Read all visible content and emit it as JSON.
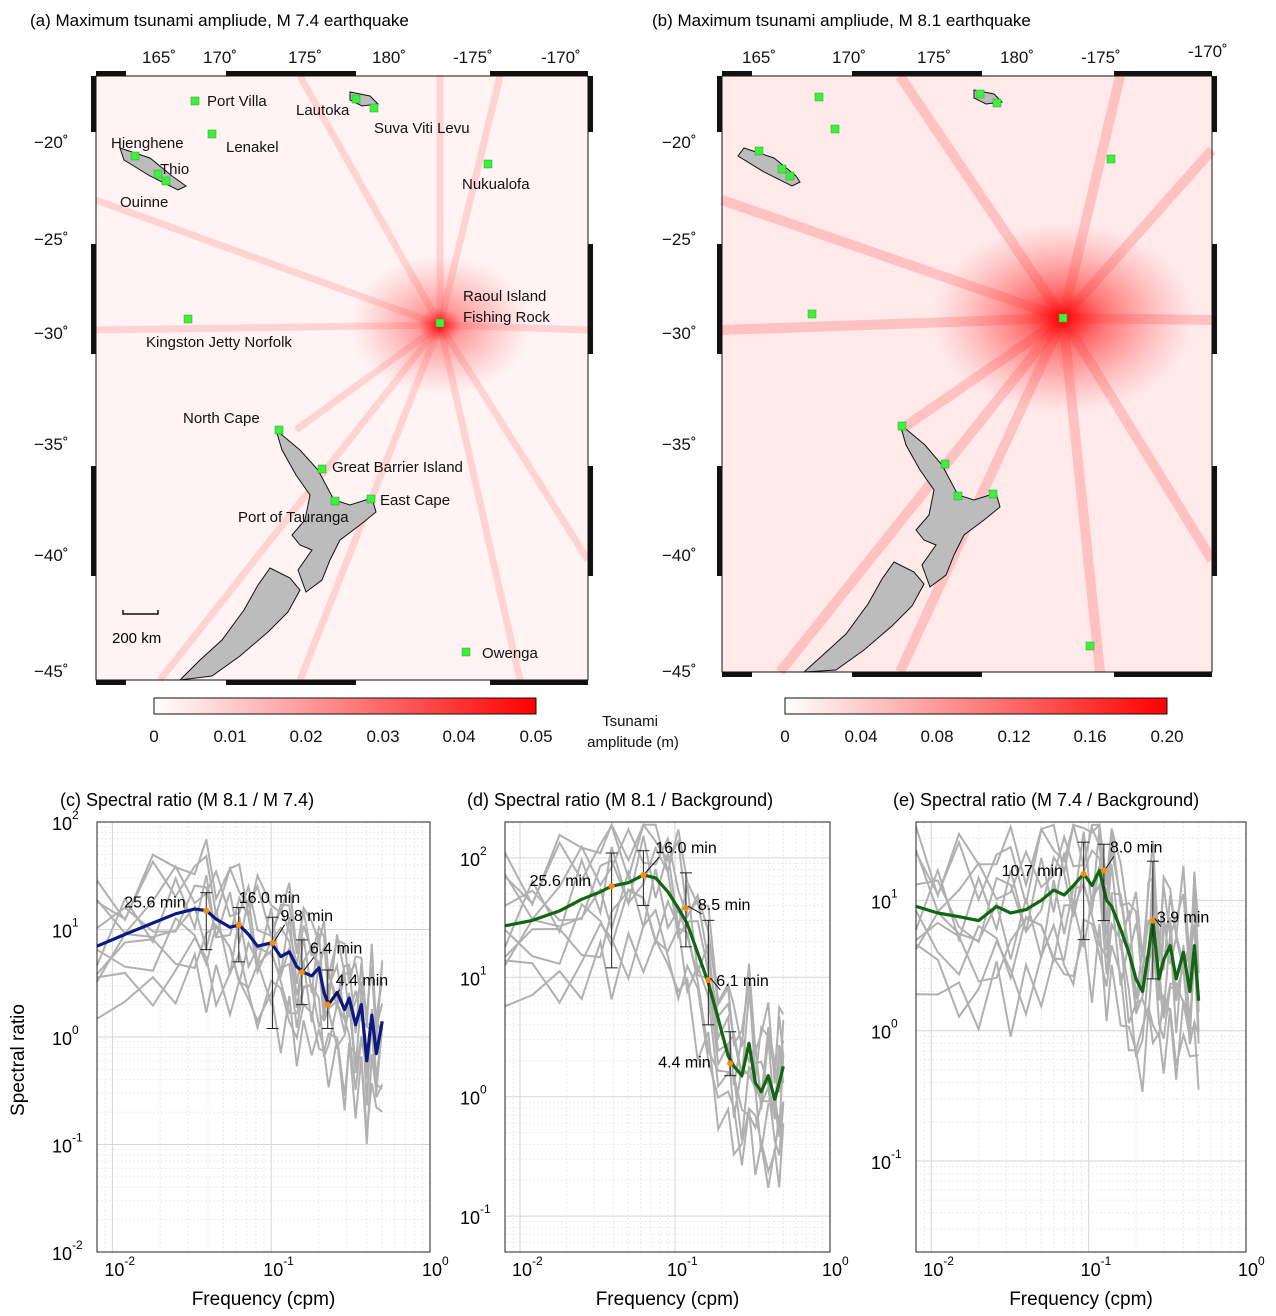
{
  "colors": {
    "land": "#bcbcbc",
    "coast": "#111111",
    "marker": "#3cf03c",
    "tsunami_red": "#ff0000",
    "series_c": "#0a1a80",
    "series_de": "#116611",
    "gray_lines": "#b0b0b0",
    "orange_points": "#ff8c00"
  },
  "panel_a": {
    "title": "(a) Maximum tsunami ampliude, M 7.4 earthquake",
    "lon_ticks": [
      "165˚",
      "170˚",
      "175˚",
      "180˚",
      "-175˚",
      "-170˚"
    ],
    "lat_ticks": [
      "−20˚",
      "−25˚",
      "−30˚",
      "−35˚",
      "−40˚",
      "−45˚"
    ],
    "scale_bar": "200 km",
    "stations": [
      "Port Villa",
      "Lenakel",
      "Lautoka",
      "Suva Viti Levu",
      "Hienghene",
      "Thio",
      "Ouinne",
      "Nukualofa",
      "Raoul Island",
      "Fishing Rock",
      "Kingston Jetty Norfolk",
      "North Cape",
      "Great Barrier Island",
      "East Cape",
      "Port of Tauranga",
      "Owenga"
    ],
    "colorbar": {
      "ticks": [
        "0",
        "0.01",
        "0.02",
        "0.03",
        "0.04",
        "0.05"
      ],
      "range": [
        0,
        0.05
      ]
    },
    "colorbar_label": [
      "Tsunami",
      "amplitude (m)"
    ]
  },
  "panel_b": {
    "title": "(b) Maximum tsunami ampliude, M 8.1 earthquake",
    "lon_ticks": [
      "165˚",
      "170˚",
      "175˚",
      "180˚",
      "-175˚",
      "-170˚"
    ],
    "lat_ticks": [
      "−20˚",
      "−25˚",
      "−30˚",
      "−35˚",
      "−40˚",
      "−45˚"
    ],
    "colorbar": {
      "ticks": [
        "0",
        "0.04",
        "0.08",
        "0.12",
        "0.16",
        "0.20"
      ],
      "range": [
        0,
        0.2
      ]
    }
  },
  "chart_data": [
    {
      "type": "line",
      "id": "c",
      "title": "(c) Spectral ratio (M 8.1 / M 7.4)",
      "xlabel": "Frequency (cpm)",
      "ylabel": "Spectral ratio",
      "xscale": "log",
      "yscale": "log",
      "xlim": [
        0.008,
        1
      ],
      "ylim": [
        0.01,
        100
      ],
      "grid": true,
      "x_ticks": [
        0.01,
        0.1,
        1
      ],
      "y_ticks": [
        0.01,
        0.1,
        1,
        10,
        100
      ],
      "main_series": {
        "x": [
          0.008,
          0.012,
          0.018,
          0.025,
          0.033,
          0.039,
          0.045,
          0.055,
          0.063,
          0.072,
          0.082,
          0.1,
          0.115,
          0.13,
          0.145,
          0.16,
          0.18,
          0.2,
          0.215,
          0.23,
          0.26,
          0.29,
          0.31,
          0.34,
          0.37,
          0.4,
          0.43,
          0.46,
          0.5
        ],
        "y": [
          7,
          9,
          11.5,
          14,
          15.5,
          15,
          12.5,
          10.5,
          11,
          9,
          7,
          7.5,
          5.6,
          6.2,
          4.5,
          4,
          3.7,
          4.4,
          2.6,
          2.0,
          2.6,
          1.8,
          2.3,
          1.3,
          2.0,
          0.6,
          1.6,
          0.7,
          1.4
        ]
      },
      "annotated_points": [
        {
          "x": 0.039,
          "y": 15,
          "label": "25.6 min",
          "err": [
            6.5,
            22
          ]
        },
        {
          "x": 0.0625,
          "y": 11,
          "label": "16.0 min",
          "err": [
            5,
            16
          ]
        },
        {
          "x": 0.102,
          "y": 7.5,
          "label": "9.8 min",
          "err": [
            1.2,
            13
          ]
        },
        {
          "x": 0.156,
          "y": 4,
          "label": "6.4 min",
          "err": [
            2,
            8
          ]
        },
        {
          "x": 0.227,
          "y": 2,
          "label": "4.4 min",
          "err": [
            1.2,
            4.2
          ]
        }
      ]
    },
    {
      "type": "line",
      "id": "d",
      "title": "(d) Spectral ratio (M 8.1 / Background)",
      "xlabel": "Frequency (cpm)",
      "xscale": "log",
      "yscale": "log",
      "xlim": [
        0.008,
        1
      ],
      "ylim": [
        0.05,
        200
      ],
      "grid": true,
      "x_ticks": [
        0.01,
        0.1,
        1
      ],
      "y_ticks": [
        0.1,
        1,
        10,
        100
      ],
      "main_series": {
        "x": [
          0.008,
          0.012,
          0.018,
          0.025,
          0.033,
          0.039,
          0.05,
          0.0625,
          0.075,
          0.09,
          0.105,
          0.12,
          0.14,
          0.164,
          0.19,
          0.22,
          0.24,
          0.27,
          0.3,
          0.33,
          0.36,
          0.4,
          0.44,
          0.47,
          0.5
        ],
        "y": [
          27,
          30,
          36,
          45,
          52,
          58,
          62,
          72,
          68,
          52,
          38,
          28,
          16,
          9,
          4.5,
          2.2,
          1.8,
          1.5,
          2.8,
          1.3,
          1.1,
          1.5,
          0.95,
          1.3,
          1.8
        ]
      },
      "annotated_points": [
        {
          "x": 0.039,
          "y": 58,
          "label": "25.6 min",
          "err": [
            12,
            110
          ]
        },
        {
          "x": 0.0625,
          "y": 72,
          "label": "16.0 min",
          "err": [
            40,
            115
          ]
        },
        {
          "x": 0.1176,
          "y": 38,
          "label": "8.5 min",
          "err": [
            18,
            75
          ]
        },
        {
          "x": 0.164,
          "y": 9.5,
          "label": "6.1 min",
          "err": [
            4,
            30
          ]
        },
        {
          "x": 0.227,
          "y": 1.9,
          "label": "4.4 min",
          "err": [
            1.5,
            3.5
          ]
        }
      ]
    },
    {
      "type": "line",
      "id": "e",
      "title": "(e) Spectral ratio (M 7.4 / Background)",
      "xlabel": "Frequency (cpm)",
      "xscale": "log",
      "yscale": "log",
      "xlim": [
        0.008,
        1
      ],
      "ylim": [
        0.02,
        40
      ],
      "grid": true,
      "x_ticks": [
        0.01,
        0.1,
        1
      ],
      "y_ticks": [
        0.1,
        1,
        10
      ],
      "main_series": {
        "x": [
          0.008,
          0.011,
          0.015,
          0.02,
          0.026,
          0.032,
          0.04,
          0.05,
          0.06,
          0.07,
          0.08,
          0.093,
          0.105,
          0.117,
          0.13,
          0.14,
          0.16,
          0.18,
          0.2,
          0.22,
          0.24,
          0.256,
          0.28,
          0.3,
          0.33,
          0.36,
          0.4,
          0.44,
          0.47,
          0.5
        ],
        "y": [
          9,
          8,
          7.5,
          7,
          9,
          8,
          8.5,
          10,
          12,
          11,
          13,
          16,
          13,
          17,
          10,
          9,
          6,
          4,
          2.5,
          2,
          4,
          7,
          2.5,
          3.5,
          4.5,
          2.5,
          4.0,
          2.0,
          4.5,
          1.7
        ]
      },
      "annotated_points": [
        {
          "x": 0.093,
          "y": 16,
          "label": "10.7 min",
          "err": [
            5,
            28
          ]
        },
        {
          "x": 0.125,
          "y": 17,
          "label": "8.0 min",
          "err": [
            7,
            27
          ]
        },
        {
          "x": 0.256,
          "y": 7,
          "label": "3.9 min",
          "err": [
            2.5,
            20
          ]
        }
      ]
    }
  ]
}
